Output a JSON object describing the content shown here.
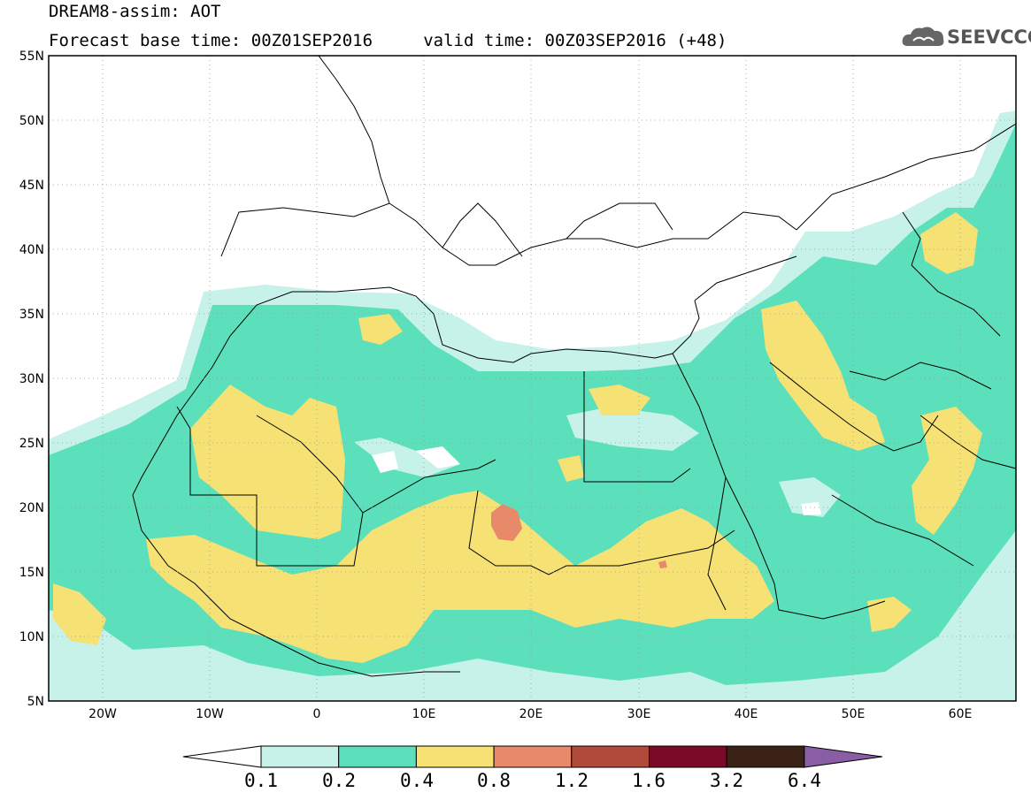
{
  "header": {
    "title_line1": "DREAM8-assim: AOT",
    "title_line2": "Forecast base time: 00Z01SEP2016     valid time: 00Z03SEP2016 (+48)"
  },
  "logo": {
    "text": "SEEVCCC",
    "icon": "cloud-icon"
  },
  "map": {
    "lat_labels": [
      "55N",
      "50N",
      "45N",
      "40N",
      "35N",
      "30N",
      "25N",
      "20N",
      "15N",
      "10N",
      "5N"
    ],
    "lon_labels": [
      "20W",
      "10W",
      "0",
      "10E",
      "20E",
      "30E",
      "40E",
      "50E",
      "60E"
    ],
    "lon_range": [
      -25,
      65
    ],
    "lat_range": [
      5,
      55
    ],
    "gridlines": true
  },
  "legend": {
    "labels": [
      "0.1",
      "0.2",
      "0.4",
      "0.8",
      "1.2",
      "1.6",
      "3.2",
      "6.4"
    ],
    "colors": [
      "#ffffff",
      "#c6f2ea",
      "#5ce0bb",
      "#f6e274",
      "#e8896a",
      "#b04a3a",
      "#7a0a28",
      "#3a2214",
      "#8a5ea4"
    ]
  }
}
